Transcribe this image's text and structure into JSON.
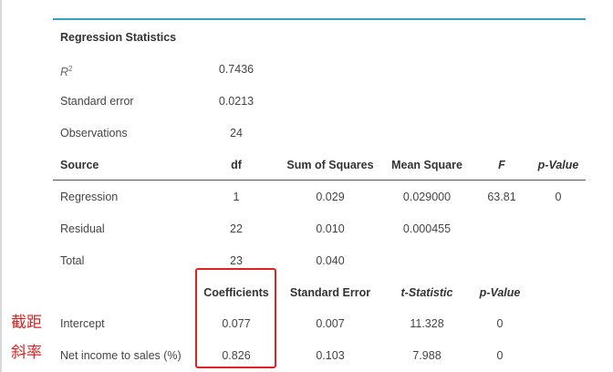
{
  "title": "Regression Statistics",
  "stats": {
    "r2_label": "R",
    "r2_sup": "2",
    "r2_value": "0.7436",
    "se_label": "Standard error",
    "se_value": "0.0213",
    "obs_label": "Observations",
    "obs_value": "24"
  },
  "anova": {
    "headers": [
      "Source",
      "df",
      "Sum of Squares",
      "Mean Square",
      "F",
      "p-Value"
    ],
    "rows": [
      [
        "Regression",
        "1",
        "0.029",
        "0.029000",
        "63.81",
        "0"
      ],
      [
        "Residual",
        "22",
        "0.010",
        "0.000455",
        "",
        ""
      ],
      [
        "Total",
        "23",
        "0.040",
        "",
        "",
        ""
      ]
    ]
  },
  "coef": {
    "headers": [
      "Coefficients",
      "Standard Error",
      "t-Statistic",
      "p-Value"
    ],
    "rows": [
      [
        "Intercept",
        "0.077",
        "0.007",
        "11.328",
        "0"
      ],
      [
        "Net income to sales (%)",
        "0.826",
        "0.103",
        "7.988",
        "0"
      ]
    ]
  },
  "annotations": [
    "截距",
    "斜率"
  ],
  "colors": {
    "rule": "#35a0c4",
    "highlight": "#e02222"
  }
}
